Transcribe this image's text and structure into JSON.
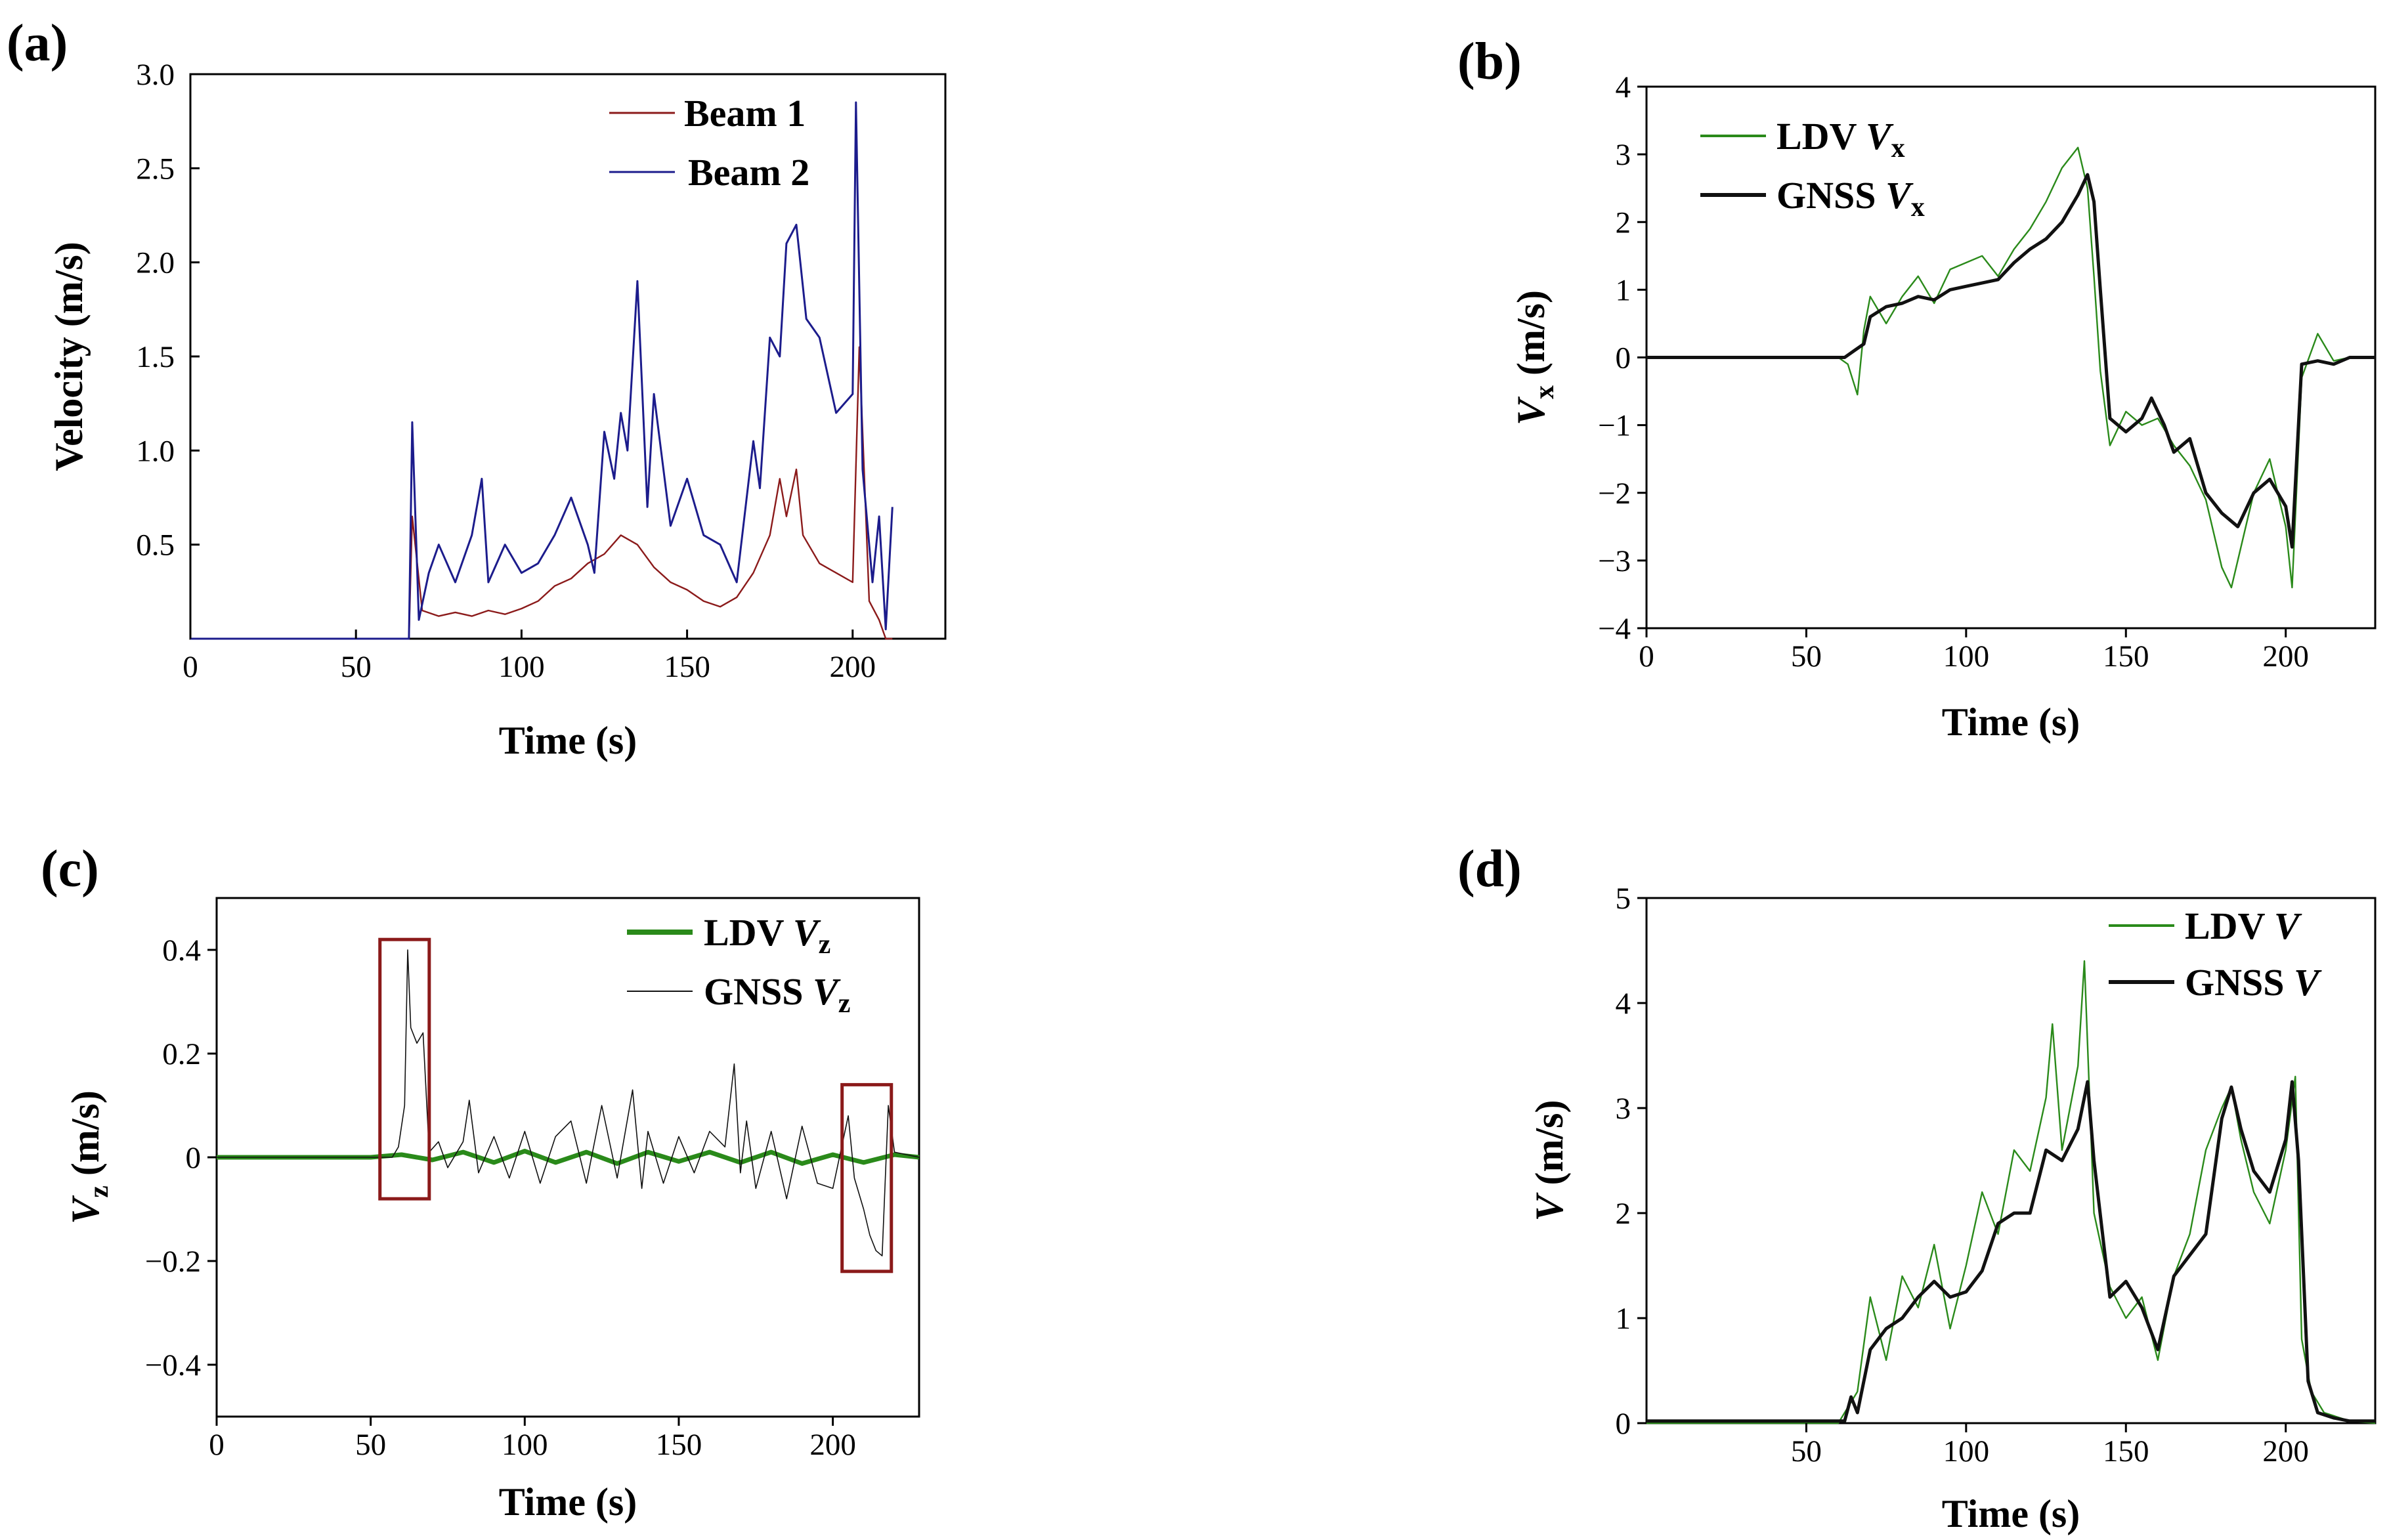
{
  "figure": {
    "panels": [
      "(a)",
      "(b)",
      "(c)",
      "(d)"
    ]
  },
  "colors": {
    "beam1": "#8b1a1a",
    "beam2": "#1c1c8c",
    "ldv": "#2a8a1a",
    "gnss": "#111111",
    "highlight_box": "#8b1a1a"
  },
  "chart_data": [
    {
      "panel": "(a)",
      "type": "line",
      "title": "",
      "xlabel": "Time (s)",
      "ylabel": "Velocity (m/s)",
      "xlim": [
        0,
        228
      ],
      "ylim": [
        0,
        3.0
      ],
      "xticks": [
        0,
        50,
        100,
        150,
        200
      ],
      "yticks": [
        0.5,
        1.0,
        1.5,
        2.0,
        2.5,
        3.0
      ],
      "ytick_labels": [
        "0.5",
        "1.0",
        "1.5",
        "2.0",
        "2.5",
        "3.0"
      ],
      "legend": [
        "Beam 1",
        "Beam 2"
      ],
      "legend_position": "top-right",
      "series": [
        {
          "name": "Beam 1",
          "color_key": "beam1",
          "x": [
            0,
            66,
            67,
            70,
            75,
            80,
            85,
            90,
            95,
            100,
            105,
            110,
            115,
            120,
            125,
            130,
            135,
            140,
            145,
            150,
            155,
            160,
            165,
            170,
            175,
            178,
            180,
            183,
            185,
            190,
            195,
            200,
            202,
            205,
            208,
            210,
            212
          ],
          "values": [
            0,
            0,
            0.65,
            0.15,
            0.12,
            0.14,
            0.12,
            0.15,
            0.13,
            0.16,
            0.2,
            0.28,
            0.32,
            0.4,
            0.45,
            0.55,
            0.5,
            0.38,
            0.3,
            0.26,
            0.2,
            0.17,
            0.22,
            0.35,
            0.55,
            0.85,
            0.65,
            0.9,
            0.55,
            0.4,
            0.35,
            0.3,
            1.55,
            0.2,
            0.1,
            0,
            0
          ]
        },
        {
          "name": "Beam 2",
          "color_key": "beam2",
          "x": [
            0,
            66,
            67,
            69,
            72,
            75,
            80,
            85,
            88,
            90,
            95,
            100,
            105,
            110,
            115,
            120,
            122,
            125,
            128,
            130,
            132,
            135,
            138,
            140,
            145,
            150,
            155,
            160,
            165,
            170,
            172,
            175,
            178,
            180,
            183,
            186,
            190,
            195,
            200,
            201,
            203,
            206,
            208,
            210,
            212
          ],
          "values": [
            0,
            0,
            1.15,
            0.1,
            0.35,
            0.5,
            0.3,
            0.55,
            0.85,
            0.3,
            0.5,
            0.35,
            0.4,
            0.55,
            0.75,
            0.5,
            0.35,
            1.1,
            0.85,
            1.2,
            1.0,
            1.9,
            0.7,
            1.3,
            0.6,
            0.85,
            0.55,
            0.5,
            0.3,
            1.05,
            0.8,
            1.6,
            1.5,
            2.1,
            2.2,
            1.7,
            1.6,
            1.2,
            1.3,
            2.85,
            0.9,
            0.3,
            0.65,
            0.05,
            0.7
          ]
        }
      ]
    },
    {
      "panel": "(b)",
      "type": "line",
      "title": "",
      "xlabel": "Time (s)",
      "ylabel": "V",
      "ylabel_sub": "x",
      "ylabel_unit": " (m/s)",
      "xlim": [
        0,
        228
      ],
      "ylim": [
        -4,
        4
      ],
      "xticks": [
        0,
        50,
        100,
        150,
        200
      ],
      "yticks": [
        -4,
        -3,
        -2,
        -1,
        0,
        1,
        2,
        3,
        4
      ],
      "ytick_labels": [
        "−4",
        "−3",
        "−2",
        "−1",
        "0",
        "1",
        "2",
        "3",
        "4"
      ],
      "legend": [
        "LDV",
        "GNSS"
      ],
      "legend_var": "V",
      "legend_sub": "x",
      "legend_position": "top-left",
      "series": [
        {
          "name": "LDV V_x",
          "color_key": "ldv",
          "x": [
            0,
            60,
            63,
            66,
            68,
            70,
            75,
            80,
            85,
            90,
            95,
            100,
            105,
            110,
            115,
            120,
            125,
            130,
            135,
            138,
            140,
            142,
            145,
            150,
            155,
            160,
            165,
            170,
            175,
            180,
            183,
            186,
            190,
            195,
            200,
            202,
            205,
            210,
            215,
            220,
            228
          ],
          "values": [
            0,
            0,
            -0.1,
            -0.55,
            0.4,
            0.9,
            0.5,
            0.9,
            1.2,
            0.8,
            1.3,
            1.4,
            1.5,
            1.2,
            1.6,
            1.9,
            2.3,
            2.8,
            3.1,
            2.5,
            1.2,
            -0.2,
            -1.3,
            -0.8,
            -1.0,
            -0.9,
            -1.3,
            -1.6,
            -2.1,
            -3.1,
            -3.4,
            -2.8,
            -2.0,
            -1.5,
            -2.5,
            -3.4,
            -0.3,
            0.35,
            -0.05,
            0,
            0
          ]
        },
        {
          "name": "GNSS V_x",
          "color_key": "gnss",
          "x": [
            0,
            62,
            65,
            68,
            70,
            75,
            80,
            85,
            90,
            95,
            100,
            105,
            110,
            115,
            120,
            125,
            130,
            135,
            138,
            140,
            142,
            145,
            150,
            155,
            158,
            162,
            165,
            170,
            175,
            180,
            185,
            190,
            195,
            200,
            202,
            205,
            210,
            215,
            220,
            228
          ],
          "values": [
            0,
            0,
            0.1,
            0.2,
            0.6,
            0.75,
            0.8,
            0.9,
            0.85,
            1.0,
            1.05,
            1.1,
            1.15,
            1.4,
            1.6,
            1.75,
            2.0,
            2.4,
            2.7,
            2.3,
            1.0,
            -0.9,
            -1.1,
            -0.9,
            -0.6,
            -1.0,
            -1.4,
            -1.2,
            -2.0,
            -2.3,
            -2.5,
            -2.0,
            -1.8,
            -2.2,
            -2.8,
            -0.1,
            -0.05,
            -0.1,
            0,
            0
          ]
        }
      ]
    },
    {
      "panel": "(c)",
      "type": "line",
      "title": "",
      "xlabel": "Time (s)",
      "ylabel": "V",
      "ylabel_sub": "z",
      "ylabel_unit": " (m/s)",
      "xlim": [
        0,
        228
      ],
      "ylim": [
        -0.5,
        0.5
      ],
      "xticks": [
        0,
        50,
        100,
        150,
        200
      ],
      "yticks": [
        -0.4,
        -0.2,
        0,
        0.2,
        0.4
      ],
      "ytick_labels": [
        "−0.4",
        "−0.2",
        "0",
        "0.2",
        "0.4"
      ],
      "legend": [
        "LDV",
        "GNSS"
      ],
      "legend_var": "V",
      "legend_sub": "z",
      "legend_position": "top-right",
      "highlight_boxes_time_s": [
        [
          53,
          69
        ],
        [
          203,
          219
        ]
      ],
      "highlight_boxes_value": [
        [
          -0.08,
          0.42
        ],
        [
          -0.22,
          0.14
        ]
      ],
      "series": [
        {
          "name": "LDV V_z",
          "color_key": "ldv",
          "x": [
            0,
            50,
            60,
            70,
            80,
            90,
            100,
            110,
            120,
            130,
            140,
            150,
            160,
            170,
            180,
            190,
            200,
            210,
            220,
            228
          ],
          "values": [
            0,
            0,
            0.005,
            -0.005,
            0.01,
            -0.01,
            0.012,
            -0.01,
            0.01,
            -0.012,
            0.01,
            -0.008,
            0.01,
            -0.01,
            0.01,
            -0.012,
            0.005,
            -0.01,
            0.005,
            0
          ]
        },
        {
          "name": "GNSS V_z",
          "color_key": "gnss",
          "x": [
            0,
            52,
            57,
            59,
            61,
            62,
            63,
            65,
            67,
            69,
            72,
            75,
            80,
            82,
            85,
            90,
            95,
            100,
            105,
            110,
            115,
            120,
            125,
            130,
            135,
            138,
            140,
            145,
            150,
            155,
            160,
            165,
            168,
            170,
            172,
            175,
            180,
            185,
            190,
            195,
            200,
            205,
            207,
            210,
            212,
            214,
            216,
            218,
            220,
            228
          ],
          "values": [
            0,
            0,
            0,
            0.02,
            0.1,
            0.4,
            0.25,
            0.22,
            0.24,
            0.01,
            0.03,
            -0.02,
            0.03,
            0.11,
            -0.03,
            0.04,
            -0.04,
            0.05,
            -0.05,
            0.04,
            0.07,
            -0.05,
            0.1,
            -0.04,
            0.13,
            -0.06,
            0.05,
            -0.05,
            0.04,
            -0.03,
            0.05,
            0.02,
            0.18,
            -0.03,
            0.07,
            -0.06,
            0.05,
            -0.08,
            0.06,
            -0.05,
            -0.06,
            0.08,
            -0.04,
            -0.1,
            -0.15,
            -0.18,
            -0.19,
            0.1,
            0.01,
            0
          ]
        }
      ]
    },
    {
      "panel": "(d)",
      "type": "line",
      "title": "",
      "xlabel": "Time (s)",
      "ylabel": "V",
      "ylabel_sub": "",
      "ylabel_unit": " (m/s)",
      "xlim": [
        0,
        228
      ],
      "ylim": [
        0,
        5
      ],
      "xticks": [
        50,
        100,
        150,
        200
      ],
      "yticks": [
        0,
        1,
        2,
        3,
        4,
        5
      ],
      "ytick_labels": [
        "0",
        "1",
        "2",
        "3",
        "4",
        "5"
      ],
      "legend": [
        "LDV",
        "GNSS"
      ],
      "legend_var": "V",
      "legend_sub": "",
      "legend_position": "top-right",
      "series": [
        {
          "name": "LDV V",
          "color_key": "ldv",
          "x": [
            0,
            60,
            63,
            66,
            70,
            75,
            80,
            85,
            90,
            95,
            100,
            105,
            110,
            115,
            120,
            125,
            127,
            130,
            135,
            137,
            140,
            145,
            150,
            155,
            160,
            165,
            170,
            175,
            180,
            183,
            186,
            190,
            195,
            200,
            203,
            205,
            208,
            212,
            220,
            228
          ],
          "values": [
            0,
            0,
            0.15,
            0.3,
            1.2,
            0.6,
            1.4,
            1.1,
            1.7,
            0.9,
            1.5,
            2.2,
            1.8,
            2.6,
            2.4,
            3.1,
            3.8,
            2.6,
            3.4,
            4.4,
            2.0,
            1.3,
            1.0,
            1.2,
            0.6,
            1.4,
            1.8,
            2.6,
            3.0,
            3.2,
            2.7,
            2.2,
            1.9,
            2.6,
            3.3,
            0.8,
            0.3,
            0.1,
            0.02,
            0
          ]
        },
        {
          "name": "GNSS V",
          "color_key": "gnss",
          "x": [
            0,
            62,
            64,
            66,
            70,
            75,
            80,
            85,
            90,
            95,
            100,
            105,
            110,
            115,
            120,
            125,
            130,
            135,
            138,
            140,
            145,
            150,
            155,
            160,
            165,
            170,
            175,
            180,
            183,
            186,
            190,
            195,
            200,
            202,
            204,
            207,
            210,
            215,
            220,
            228
          ],
          "values": [
            0.02,
            0.02,
            0.25,
            0.1,
            0.7,
            0.9,
            1.0,
            1.2,
            1.35,
            1.2,
            1.25,
            1.45,
            1.9,
            2.0,
            2.0,
            2.6,
            2.5,
            2.8,
            3.25,
            2.5,
            1.2,
            1.35,
            1.1,
            0.7,
            1.4,
            1.6,
            1.8,
            2.9,
            3.2,
            2.8,
            2.4,
            2.2,
            2.7,
            3.25,
            2.5,
            0.4,
            0.1,
            0.05,
            0.02,
            0.02
          ]
        }
      ]
    }
  ]
}
